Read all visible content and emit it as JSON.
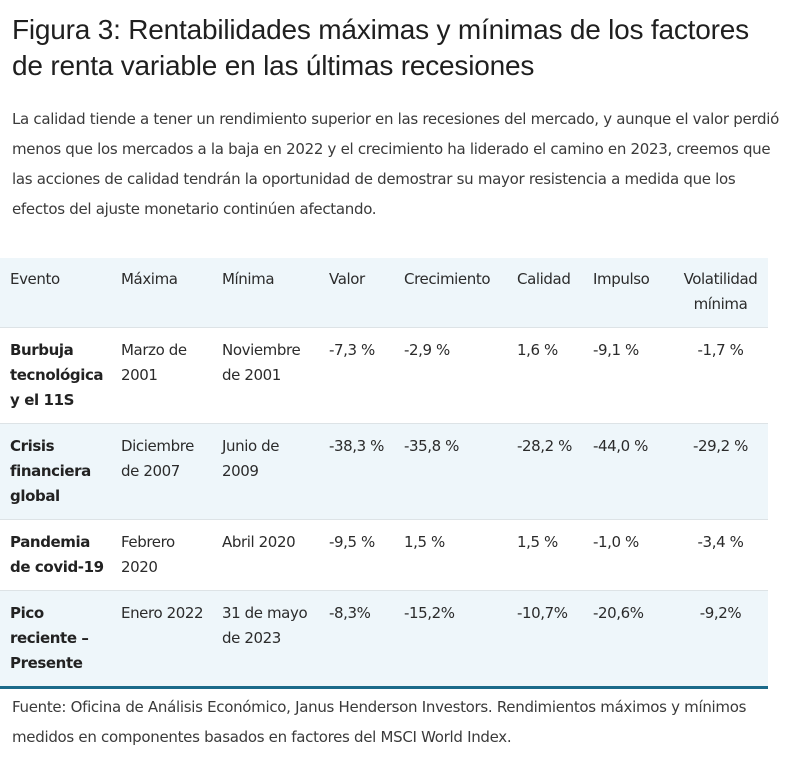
{
  "title": "Figura 3: Rentabilidades máximas y mínimas de los factores de renta variable en las últimas recesiones",
  "intro": "La calidad tiende a tener un rendimiento superior en las recesiones del mercado, y aunque el valor perdió menos que los mercados a la baja en 2022 y el crecimiento ha liderado el camino en 2023, creemos que las acciones de calidad tendrán la oportunidad de demostrar su mayor resistencia a medida que los efectos del ajuste monetario continúen afectando.",
  "table": {
    "headers": [
      "Evento",
      "Máxima",
      "Mínima",
      "Valor",
      "Crecimiento",
      "Calidad",
      "Impulso",
      "Volatilidad mínima"
    ],
    "rows": [
      [
        "Burbuja tecnológica y el 11S",
        "Marzo de 2001",
        "Noviembre de 2001",
        "-7,3 %",
        "-2,9 %",
        "1,6 %",
        "-9,1 %",
        "-1,7 %"
      ],
      [
        "Crisis financiera global",
        "Diciembre de 2007",
        "Junio de 2009",
        "-38,3 %",
        "-35,8 %",
        "-28,2 %",
        "-44,0 %",
        "-29,2 %"
      ],
      [
        "Pandemia de covid-19",
        "Febrero 2020",
        "Abril 2020",
        "-9,5 %",
        "1,5 %",
        "1,5 %",
        "-1,0 %",
        "-3,4 %"
      ],
      [
        "Pico reciente – Presente",
        "Enero 2022",
        "31 de mayo de 2023",
        "-8,3%",
        "-15,2%",
        "-10,7%",
        "-20,6%",
        "-9,2%"
      ]
    ]
  },
  "source": "Fuente: Oficina de Análisis Económico, Janus Henderson Investors. Rendimientos máximos y mínimos medidos en componentes basados en factores del MSCI World Index."
}
